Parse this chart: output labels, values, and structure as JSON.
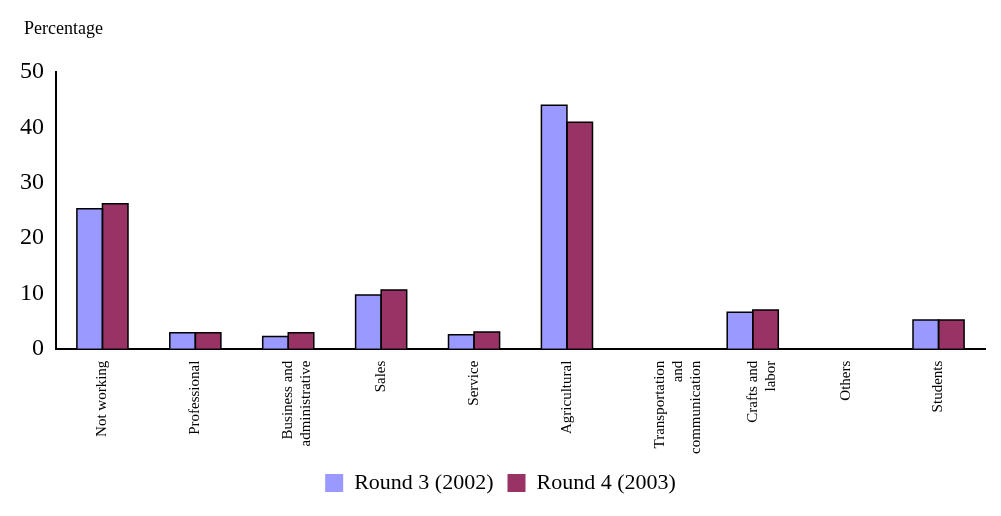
{
  "chart_data": {
    "type": "bar",
    "ylabel": "Percentage",
    "categories": [
      "Not working",
      "Professional",
      "Business and administrative",
      "Sales",
      "Service",
      "Agricultural",
      "Transportation and communication",
      "Crafts and labor",
      "Others",
      "Students"
    ],
    "series": [
      {
        "name": "Round 3 (2002)",
        "color": "#9999ff",
        "values": [
          25.3,
          2.9,
          2.2,
          9.7,
          2.5,
          44.0,
          0,
          6.6,
          0,
          5.2
        ]
      },
      {
        "name": "Round 4 (2003)",
        "color": "#993366",
        "values": [
          26.2,
          2.9,
          2.9,
          10.6,
          3.0,
          40.9,
          0,
          7.0,
          0,
          5.2
        ]
      }
    ],
    "ylim": [
      0,
      50
    ],
    "yticks": [
      0,
      10,
      20,
      30,
      40,
      50
    ],
    "grid": false,
    "legend": "bottom"
  }
}
